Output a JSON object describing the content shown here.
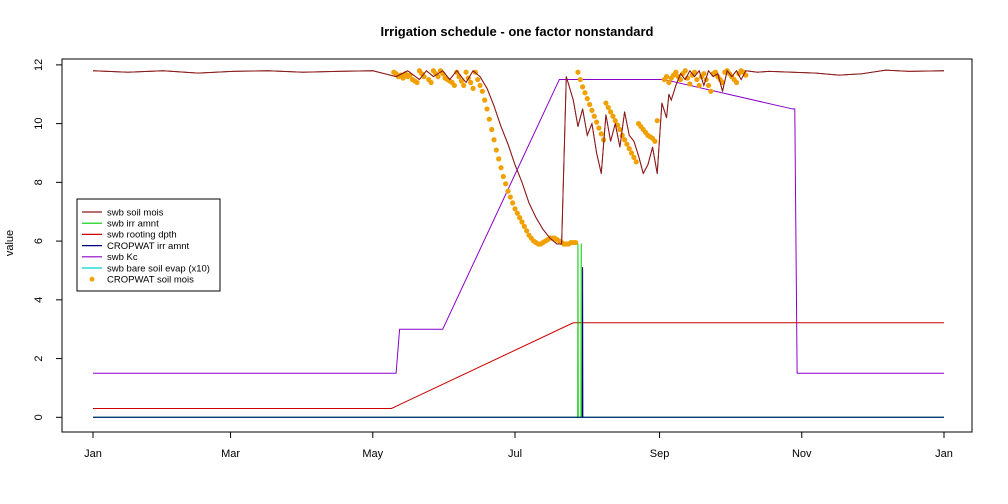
{
  "chart_data": {
    "type": "line",
    "title": "Irrigation schedule - one factor nonstandard",
    "ylabel": "value",
    "xlabel": "",
    "xlim": [
      0,
      365
    ],
    "ylim": [
      -0.5,
      12.2
    ],
    "x_ticks": [
      {
        "label": "Jan",
        "day": 0
      },
      {
        "label": "Mar",
        "day": 59
      },
      {
        "label": "May",
        "day": 120
      },
      {
        "label": "Jul",
        "day": 181
      },
      {
        "label": "Sep",
        "day": 243
      },
      {
        "label": "Nov",
        "day": 304
      },
      {
        "label": "Jan",
        "day": 365
      }
    ],
    "y_ticks": [
      0,
      2,
      4,
      6,
      8,
      10,
      12
    ],
    "legend_position": "left",
    "series": [
      {
        "name": "swb soil mois",
        "color": "#8b1a1a",
        "style": "line",
        "x": [
          0,
          15,
          30,
          45,
          60,
          75,
          90,
          105,
          120,
          125,
          130,
          135,
          140,
          143,
          146,
          150,
          153,
          156,
          160,
          163,
          166,
          169,
          172,
          175,
          178,
          181,
          184,
          187,
          190,
          193,
          196,
          199,
          201,
          203,
          206,
          208,
          210,
          212,
          214,
          216,
          218,
          220,
          222,
          224,
          226,
          228,
          230,
          232,
          234,
          236,
          238,
          240,
          242,
          244,
          246,
          247,
          248,
          250,
          252,
          254,
          256,
          258,
          260,
          262,
          264,
          266,
          268,
          270,
          272,
          274,
          276,
          278,
          280,
          285,
          290,
          300,
          310,
          320,
          330,
          340,
          350,
          365
        ],
        "y": [
          11.8,
          11.75,
          11.8,
          11.72,
          11.78,
          11.8,
          11.75,
          11.78,
          11.8,
          11.7,
          11.6,
          11.8,
          11.5,
          11.8,
          11.6,
          11.8,
          11.5,
          11.8,
          11.4,
          11.8,
          11.6,
          11.2,
          10.6,
          9.9,
          9.3,
          8.6,
          8.0,
          7.3,
          6.8,
          6.4,
          6.1,
          5.9,
          5.9,
          11.6,
          10.8,
          9.9,
          10.5,
          9.6,
          10.0,
          9.0,
          8.3,
          10.3,
          9.4,
          10.0,
          9.2,
          10.4,
          9.6,
          9.4,
          8.9,
          8.3,
          8.6,
          9.2,
          8.3,
          10.7,
          10.2,
          11.0,
          10.8,
          11.3,
          11.7,
          11.5,
          11.8,
          11.6,
          11.8,
          11.3,
          11.8,
          11.6,
          11.7,
          11.1,
          11.8,
          11.6,
          11.8,
          11.5,
          11.8,
          11.75,
          11.78,
          11.75,
          11.72,
          11.65,
          11.7,
          11.82,
          11.78,
          11.8
        ]
      },
      {
        "name": "swb irr amnt",
        "color": "#00cc00",
        "style": "line",
        "x": [
          0,
          207.9,
          208,
          208.1,
          209.3,
          209.4,
          209.5,
          365
        ],
        "y": [
          0,
          0,
          5.9,
          0,
          0,
          5.9,
          0,
          0
        ]
      },
      {
        "name": "swb rooting dpth",
        "color": "#cc0000",
        "style": "line",
        "x": [
          0,
          128,
          132,
          206,
          365
        ],
        "y": [
          0.3,
          0.3,
          0.45,
          3.22,
          3.22
        ]
      },
      {
        "name": "CROPWAT irr amnt",
        "color": "#000080",
        "style": "line",
        "x": [
          0,
          209.9,
          210,
          210.1,
          365
        ],
        "y": [
          0,
          0,
          5.1,
          0,
          0
        ]
      },
      {
        "name": "swb Kc",
        "color": "#8b00c8",
        "style": "line",
        "x": [
          0,
          130,
          131.5,
          150,
          200,
          245,
          300,
          301,
          302,
          365
        ],
        "y": [
          1.5,
          1.5,
          3.0,
          3.0,
          11.5,
          11.5,
          10.5,
          10.5,
          1.5,
          1.5
        ]
      },
      {
        "name": "swb bare soil evap (x10)",
        "color": "#00d4d4",
        "style": "line",
        "x": [
          0,
          365
        ],
        "y": [
          0,
          0
        ]
      },
      {
        "name": "CROPWAT soil mois",
        "color": "#f0a000",
        "style": "points",
        "x": [
          129,
          130,
          131,
          132,
          133,
          134,
          135,
          136,
          137,
          138,
          139,
          140,
          141,
          142,
          144,
          145,
          146,
          147,
          148,
          149,
          150,
          151,
          152,
          153,
          154,
          155,
          156,
          157,
          158,
          159,
          160,
          161,
          162,
          163,
          164,
          165,
          166,
          167,
          168,
          169,
          170,
          171,
          172,
          173,
          174,
          175,
          176,
          177,
          178,
          179,
          180,
          181,
          182,
          183,
          184,
          185,
          186,
          187,
          188,
          189,
          190,
          191,
          192,
          193,
          194,
          195,
          196,
          197,
          198,
          199,
          200,
          201,
          202,
          203,
          204,
          205,
          206,
          207,
          208,
          209,
          210,
          211,
          212,
          213,
          214,
          215,
          216,
          217,
          218,
          219,
          220,
          221,
          222,
          223,
          224,
          225,
          226,
          227,
          228,
          229,
          230,
          231,
          232,
          233,
          234,
          235,
          236,
          237,
          238,
          239,
          240,
          241,
          242,
          245,
          246,
          247,
          248,
          249,
          250,
          251,
          252,
          253,
          254,
          255,
          256,
          257,
          258,
          259,
          260,
          261,
          262,
          263,
          264,
          265,
          266,
          267,
          268,
          269,
          270,
          271,
          272,
          273,
          274,
          275,
          276,
          277,
          278,
          279,
          280
        ],
        "y": [
          11.75,
          11.7,
          11.6,
          11.65,
          11.55,
          11.7,
          11.6,
          11.65,
          11.5,
          11.45,
          11.4,
          11.8,
          11.7,
          11.6,
          11.5,
          11.4,
          11.8,
          11.7,
          11.6,
          11.8,
          11.7,
          11.55,
          11.5,
          11.45,
          11.4,
          11.3,
          11.75,
          11.6,
          11.45,
          11.3,
          11.75,
          11.55,
          11.4,
          11.2,
          11.75,
          11.5,
          11.3,
          11.1,
          10.8,
          10.5,
          10.15,
          9.8,
          9.45,
          9.1,
          8.8,
          8.5,
          8.2,
          7.95,
          7.7,
          7.5,
          7.3,
          7.1,
          6.95,
          6.8,
          6.65,
          6.5,
          6.35,
          6.2,
          6.1,
          6.0,
          5.95,
          5.9,
          5.9,
          5.95,
          6.0,
          6.05,
          6.1,
          6.1,
          6.1,
          6.05,
          6.0,
          5.95,
          5.9,
          5.9,
          5.9,
          5.95,
          5.95,
          5.95,
          11.75,
          11.5,
          11.25,
          11.05,
          10.85,
          10.65,
          10.45,
          10.25,
          10.05,
          9.85,
          9.65,
          9.45,
          10.7,
          10.55,
          10.4,
          10.25,
          10.1,
          9.95,
          9.8,
          9.6,
          9.45,
          9.3,
          9.15,
          9.0,
          8.85,
          8.7,
          10.0,
          9.9,
          9.8,
          9.7,
          9.6,
          9.55,
          9.5,
          9.4,
          10.1,
          11.5,
          11.6,
          11.4,
          11.55,
          11.65,
          11.75,
          11.6,
          11.5,
          11.7,
          11.8,
          11.55,
          11.35,
          11.65,
          11.75,
          11.5,
          11.3,
          11.6,
          11.7,
          11.5,
          11.3,
          11.1,
          11.7,
          11.75,
          11.6,
          11.5,
          11.4,
          11.75,
          11.8,
          11.7,
          11.6,
          11.5,
          11.4,
          11.7,
          11.8,
          11.75,
          11.65
        ]
      }
    ]
  }
}
